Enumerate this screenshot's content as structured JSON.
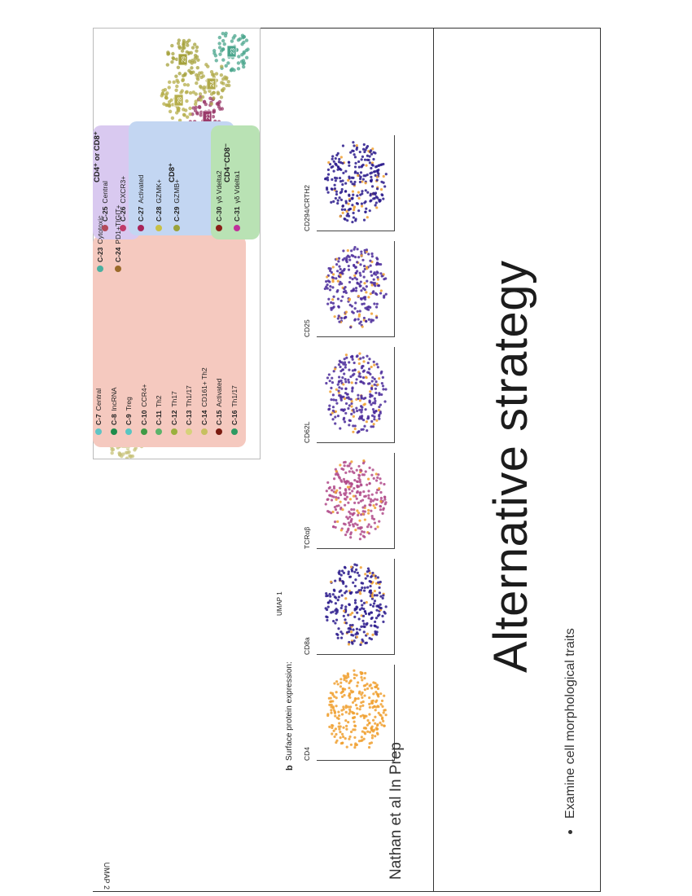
{
  "figure": {
    "umap": {
      "xlabel": "UMAP 1",
      "ylabel": "UMAP 2",
      "clusters": [
        {
          "id": "14",
          "color": "#c7c27a"
        },
        {
          "id": "11",
          "color": "#5aa98a"
        },
        {
          "id": "6",
          "color": "#6fb9b7"
        },
        {
          "id": "8",
          "color": "#59b074"
        },
        {
          "id": "10",
          "color": "#7aa557"
        },
        {
          "id": "17",
          "color": "#75a6c9"
        },
        {
          "id": "18",
          "color": "#b23b48"
        },
        {
          "id": "15",
          "color": "#8e1d17"
        },
        {
          "id": "5",
          "color": "#a02b2d"
        },
        {
          "id": "9",
          "color": "#5fb8c4"
        },
        {
          "id": "31",
          "color": "#b12a83"
        },
        {
          "id": "21",
          "color": "#9a3a6a"
        },
        {
          "id": "23",
          "color": "#4aa58c"
        },
        {
          "id": "24",
          "color": "#b0a94a"
        },
        {
          "id": "29",
          "color": "#a5a23c"
        },
        {
          "id": "28",
          "color": "#b5ad4a"
        },
        {
          "id": "27",
          "color": "#a3336a"
        },
        {
          "id": "26",
          "color": "#aa3b56"
        },
        {
          "id": "25",
          "color": "#a54a55"
        }
      ]
    },
    "legend": {
      "cd4_items": [
        {
          "id": "C-7",
          "label": "Central",
          "color": "#5fc4c4"
        },
        {
          "id": "C-8",
          "label": "lncRNA",
          "color": "#1e8c4c"
        },
        {
          "id": "C-9",
          "label": "Treg",
          "color": "#58c6c2"
        },
        {
          "id": "C-10",
          "label": "CCR4+",
          "color": "#3f9a45"
        },
        {
          "id": "C-11",
          "label": "Th2",
          "color": "#5bb36a"
        },
        {
          "id": "C-12",
          "label": "Th17",
          "color": "#9ab03e"
        },
        {
          "id": "C-13",
          "label": "Th1/17",
          "color": "#d6d27a"
        },
        {
          "id": "C-14",
          "label": "CD161+ Th2",
          "color": "#c7c060"
        },
        {
          "id": "C-15",
          "label": "Activated",
          "color": "#7a1a10"
        },
        {
          "id": "C-16",
          "label": "Th1/17",
          "color": "#2d9a62"
        }
      ],
      "cd4_or_cd8_heading": "CD4⁺ or CD8⁺",
      "cd4_or_cd8_items": [
        {
          "id": "C-23",
          "label": "Cytotoxic",
          "color": "#4ab0a0"
        },
        {
          "id": "C-24",
          "label": "PD1+TIGIT+",
          "color": "#9a6a2a"
        }
      ],
      "cd8_heading": "CD8⁺",
      "cd8_items": [
        {
          "id": "C-25",
          "label": "Central",
          "color": "#b34a5a"
        },
        {
          "id": "C-26",
          "label": "CXCR3+",
          "color": "#c03a6a"
        },
        {
          "id": "C-27",
          "label": "Activated",
          "color": "#a8245a"
        },
        {
          "id": "C-28",
          "label": "GZMK+",
          "color": "#c8c046"
        },
        {
          "id": "C-29",
          "label": "GZMB+",
          "color": "#9aa23a"
        }
      ],
      "dn_heading": "CD4⁻CD8⁻",
      "dn_items": [
        {
          "id": "C-30",
          "label": "γδ Vdelta2",
          "color": "#8a1e18"
        },
        {
          "id": "C-31",
          "label": "γδ Vdelta1",
          "color": "#c0309a"
        }
      ],
      "panel_colors": {
        "cd4": "#f5c9bf",
        "cd4_or_cd8": "#d9c9f0",
        "cd8": "#c3d6f2",
        "dn": "#b9e2b4"
      }
    },
    "surface": {
      "panel_letter": "b",
      "heading": "Surface protein expression:",
      "markers": [
        {
          "label": "CD4",
          "dominant": "#f0a030"
        },
        {
          "label": "CD8a",
          "dominant": "#2a1a8c"
        },
        {
          "label": "TCRαβ",
          "dominant": "#b04a8a"
        },
        {
          "label": "CD62L",
          "dominant": "#4a2a9a"
        },
        {
          "label": "CD25",
          "dominant": "#4a2a9a"
        },
        {
          "label": "CD294/CRTH2",
          "dominant": "#2a1a8c"
        }
      ]
    },
    "citation": "Nathan et al In Prep"
  },
  "slide": {
    "title": "Alternative strategy",
    "bullets": [
      "Examine cell morphological traits"
    ]
  }
}
